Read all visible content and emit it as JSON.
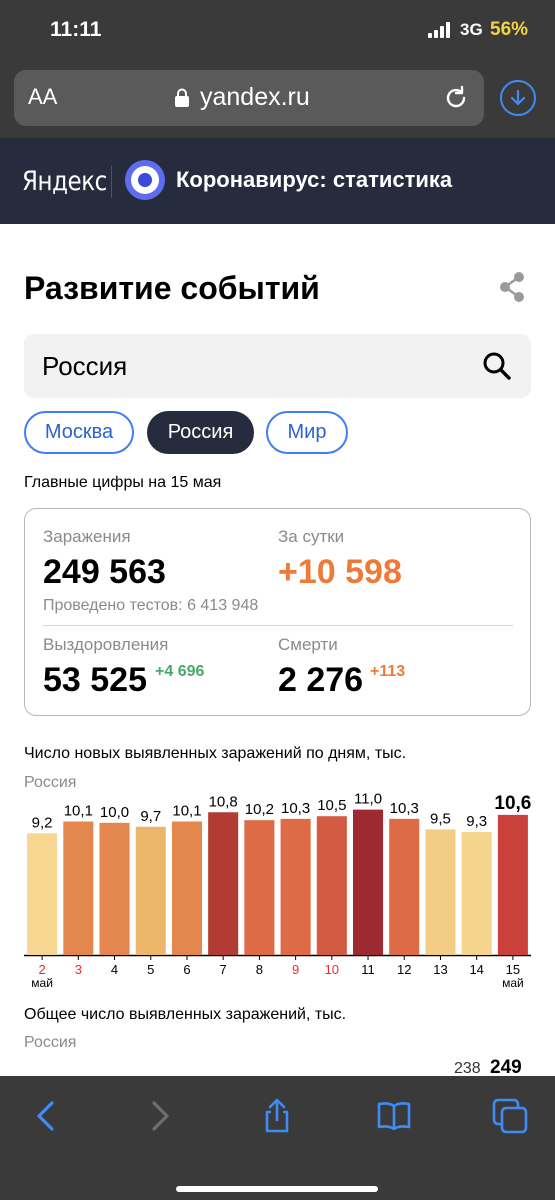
{
  "status_bar": {
    "time": "11:11",
    "network": "3G",
    "battery": "56%"
  },
  "browser": {
    "text_size_label": "AA",
    "url": "yandex.ru"
  },
  "header": {
    "logo": "Яндекс",
    "title": "Коронавирус: статистика"
  },
  "page": {
    "title": "Развитие событий",
    "search_value": "Россия",
    "chips": [
      {
        "label": "Москва",
        "active": false
      },
      {
        "label": "Россия",
        "active": true
      },
      {
        "label": "Мир",
        "active": false
      }
    ],
    "main_figures_date": "Главные цифры на 15 мая"
  },
  "stats": {
    "infections_label": "Заражения",
    "infections_value": "249 563",
    "day_label": "За сутки",
    "day_value": "+10 598",
    "tests_text": "Проведено тестов: 6 413 948",
    "recovered_label": "Выздоровления",
    "recovered_value": "53 525",
    "recovered_delta": "+4 696",
    "deaths_label": "Смерти",
    "deaths_value": "2 276",
    "deaths_delta": "+113"
  },
  "chart": {
    "title": "Число новых выявленных заражений по дням, тыс.",
    "subtitle": "Россия"
  },
  "chart_data": {
    "type": "bar",
    "title": "Число новых выявленных заражений по дням, тыс.",
    "subtitle": "Россия",
    "categories": [
      "2",
      "3",
      "4",
      "5",
      "6",
      "7",
      "8",
      "9",
      "10",
      "11",
      "12",
      "13",
      "14",
      "15"
    ],
    "values": [
      9.2,
      10.1,
      10.0,
      9.7,
      10.1,
      10.8,
      10.2,
      10.3,
      10.5,
      11.0,
      10.3,
      9.5,
      9.3,
      10.6
    ],
    "value_labels": [
      "9,2",
      "10,1",
      "10,0",
      "9,7",
      "10,1",
      "10,8",
      "10,2",
      "10,3",
      "10,5",
      "11,0",
      "10,3",
      "9,5",
      "9,3",
      "10,6"
    ],
    "month_labels": [
      "май",
      "",
      "",
      "",
      "",
      "",
      "",
      "",
      "",
      "",
      "",
      "",
      "",
      "май"
    ],
    "weekend_days": [
      "2",
      "3",
      "9",
      "10"
    ],
    "bar_colors": [
      "#f6d690",
      "#e3874f",
      "#e3874f",
      "#ebb56a",
      "#e3874f",
      "#b03c33",
      "#dd6b45",
      "#dd6b45",
      "#d35b42",
      "#9c2a30",
      "#dd6b45",
      "#f3cd86",
      "#f5d48d",
      "#c9413a"
    ],
    "highlight_last": true,
    "ylim": [
      0,
      11.5
    ],
    "weekend_color": "#e0302c",
    "label_color": "#000000"
  },
  "chart2": {
    "title": "Общее число выявленных заражений, тыс.",
    "subtitle": "Россия",
    "visible_labels": [
      "238",
      "249"
    ]
  }
}
